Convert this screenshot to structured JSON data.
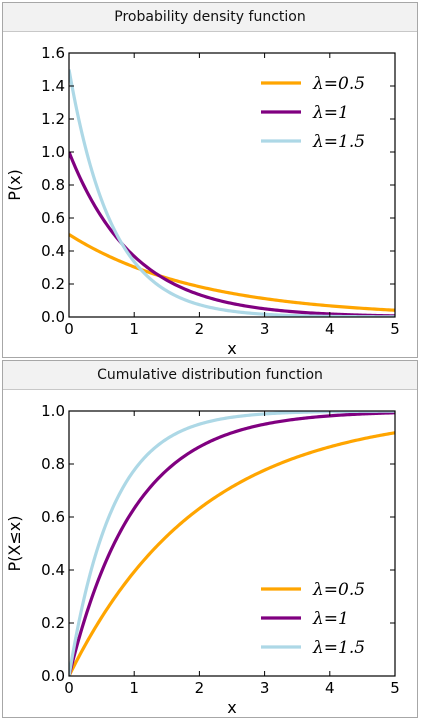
{
  "chart_data": [
    {
      "type": "line",
      "title": "Probability density function",
      "xlabel": "x",
      "ylabel": "P(x)",
      "xlim": [
        0,
        5
      ],
      "ylim": [
        0,
        1.6
      ],
      "xticks": [
        "0",
        "1",
        "2",
        "3",
        "4",
        "5"
      ],
      "yticks": [
        "0.0",
        "0.2",
        "0.4",
        "0.6",
        "0.8",
        "1.0",
        "1.2",
        "1.4",
        "1.6"
      ],
      "function": "pdf",
      "legend_position": "top-right",
      "grid": false,
      "series": [
        {
          "name": "λ=0.5",
          "lambda": 0.5,
          "color": "#ffa500",
          "x": [
            0,
            0.5,
            1,
            1.5,
            2,
            2.5,
            3,
            3.5,
            4,
            4.5,
            5
          ],
          "y": [
            0.5,
            0.389,
            0.303,
            0.236,
            0.184,
            0.143,
            0.112,
            0.087,
            0.068,
            0.053,
            0.041
          ]
        },
        {
          "name": "λ=1",
          "lambda": 1,
          "color": "#800080",
          "x": [
            0,
            0.5,
            1,
            1.5,
            2,
            2.5,
            3,
            3.5,
            4,
            4.5,
            5
          ],
          "y": [
            1.0,
            0.607,
            0.368,
            0.223,
            0.135,
            0.082,
            0.05,
            0.03,
            0.018,
            0.011,
            0.007
          ]
        },
        {
          "name": "λ=1.5",
          "lambda": 1.5,
          "color": "#add8e6",
          "x": [
            0,
            0.5,
            1,
            1.5,
            2,
            2.5,
            3,
            3.5,
            4,
            4.5,
            5
          ],
          "y": [
            1.5,
            0.709,
            0.335,
            0.158,
            0.075,
            0.035,
            0.017,
            0.008,
            0.004,
            0.002,
            0.001
          ]
        }
      ]
    },
    {
      "type": "line",
      "title": "Cumulative distribution function",
      "xlabel": "x",
      "ylabel": "P(X≤x)",
      "xlim": [
        0,
        5
      ],
      "ylim": [
        0,
        1.0
      ],
      "xticks": [
        "0",
        "1",
        "2",
        "3",
        "4",
        "5"
      ],
      "yticks": [
        "0.0",
        "0.2",
        "0.4",
        "0.6",
        "0.8",
        "1.0"
      ],
      "function": "cdf",
      "legend_position": "bottom-right",
      "grid": false,
      "series": [
        {
          "name": "λ=0.5",
          "lambda": 0.5,
          "color": "#ffa500",
          "x": [
            0,
            0.5,
            1,
            1.5,
            2,
            2.5,
            3,
            3.5,
            4,
            4.5,
            5
          ],
          "y": [
            0,
            0.221,
            0.393,
            0.528,
            0.632,
            0.713,
            0.777,
            0.826,
            0.865,
            0.895,
            0.918
          ]
        },
        {
          "name": "λ=1",
          "lambda": 1,
          "color": "#800080",
          "x": [
            0,
            0.5,
            1,
            1.5,
            2,
            2.5,
            3,
            3.5,
            4,
            4.5,
            5
          ],
          "y": [
            0,
            0.393,
            0.632,
            0.777,
            0.865,
            0.918,
            0.95,
            0.97,
            0.982,
            0.989,
            0.993
          ]
        },
        {
          "name": "λ=1.5",
          "lambda": 1.5,
          "color": "#add8e6",
          "x": [
            0,
            0.5,
            1,
            1.5,
            2,
            2.5,
            3,
            3.5,
            4,
            4.5,
            5
          ],
          "y": [
            0,
            0.528,
            0.777,
            0.895,
            0.95,
            0.976,
            0.989,
            0.995,
            0.998,
            0.999,
            0.999
          ]
        }
      ]
    }
  ]
}
